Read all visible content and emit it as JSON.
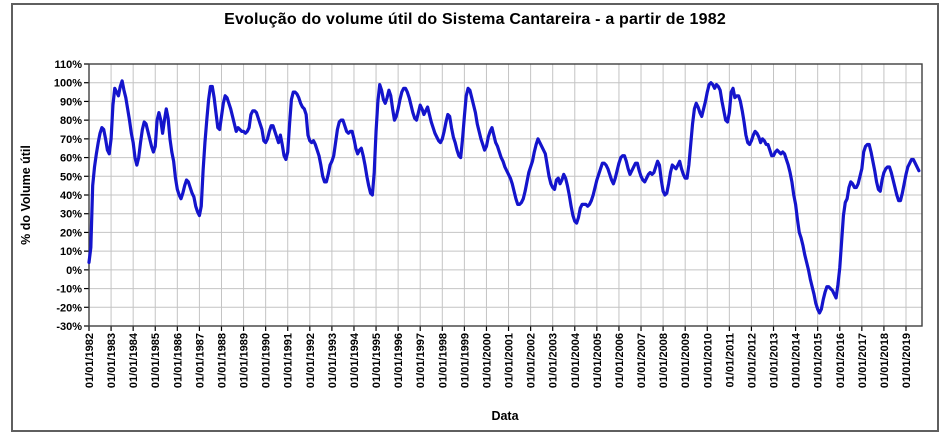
{
  "chart_data": {
    "type": "line",
    "title": "Evolução do volume útil do Sistema Cantareira - a partir de 1982",
    "xlabel": "Data",
    "ylabel": "% do Volume  útil",
    "grid": true,
    "legend_position": "none",
    "ylim": [
      -30,
      110
    ],
    "y_tick_labels": [
      "110%",
      "100%",
      "90%",
      "80%",
      "70%",
      "60%",
      "50%",
      "40%",
      "30%",
      "20%",
      "10%",
      "0%",
      "-10%",
      "-20%",
      "-30%"
    ],
    "x_tick_labels": [
      "01/01/1982",
      "01/01/1983",
      "01/01/1984",
      "01/01/1985",
      "01/01/1986",
      "01/01/1987",
      "01/01/1988",
      "01/01/1989",
      "01/01/1990",
      "01/01/1991",
      "01/01/1992",
      "01/01/1993",
      "01/01/1994",
      "01/01/1995",
      "01/01/1996",
      "01/01/1997",
      "01/01/1998",
      "01/01/1999",
      "01/01/2000",
      "01/01/2001",
      "01/01/2002",
      "01/01/2003",
      "01/01/2004",
      "01/01/2005",
      "01/01/2006",
      "01/01/2007",
      "01/01/2008",
      "01/01/2009",
      "01/01/2010",
      "01/01/2011",
      "01/01/2012",
      "01/01/2013",
      "01/01/2014",
      "01/01/2015",
      "01/01/2016",
      "01/01/2017",
      "01/01/2018",
      "01/01/2019"
    ],
    "line_color": "#1414cc",
    "grid_color": "#c4c4c4",
    "series": [
      {
        "name": "% do Volume útil",
        "start": "01/1982",
        "frequency": "monthly",
        "values_pct": [
          4,
          12,
          45,
          55,
          62,
          68,
          73,
          76,
          75,
          70,
          64,
          62,
          70,
          88,
          97,
          95,
          93,
          98,
          101,
          96,
          92,
          86,
          80,
          73,
          68,
          60,
          56,
          60,
          68,
          75,
          79,
          78,
          74,
          70,
          66,
          63,
          66,
          80,
          84,
          80,
          73,
          80,
          86,
          81,
          70,
          63,
          58,
          49,
          43,
          40,
          38,
          41,
          45,
          48,
          47,
          44,
          41,
          39,
          34,
          31,
          29,
          34,
          53,
          68,
          80,
          91,
          98,
          98,
          92,
          84,
          76,
          75,
          82,
          89,
          93,
          92,
          89,
          86,
          82,
          78,
          74,
          76,
          75,
          74,
          74,
          73,
          74,
          76,
          83,
          85,
          85,
          84,
          81,
          78,
          75,
          69,
          68,
          70,
          74,
          77,
          77,
          74,
          71,
          68,
          72,
          67,
          61,
          59,
          63,
          78,
          91,
          95,
          95,
          94,
          92,
          89,
          87,
          86,
          83,
          72,
          69,
          68,
          69,
          67,
          64,
          61,
          56,
          50,
          47,
          47,
          51,
          56,
          58,
          61,
          68,
          75,
          79,
          80,
          80,
          77,
          74,
          73,
          74,
          74,
          70,
          65,
          62,
          64,
          65,
          61,
          56,
          50,
          45,
          41,
          40,
          52,
          74,
          90,
          99,
          96,
          91,
          89,
          92,
          96,
          93,
          86,
          80,
          82,
          86,
          91,
          95,
          97,
          97,
          95,
          92,
          88,
          84,
          81,
          80,
          84,
          88,
          86,
          83,
          85,
          87,
          83,
          79,
          76,
          73,
          71,
          69,
          68,
          70,
          74,
          79,
          83,
          82,
          76,
          71,
          68,
          64,
          61,
          60,
          70,
          82,
          93,
          97,
          96,
          92,
          88,
          84,
          78,
          74,
          70,
          67,
          64,
          66,
          71,
          74,
          76,
          72,
          68,
          66,
          63,
          60,
          58,
          55,
          53,
          51,
          49,
          46,
          42,
          38,
          35,
          35,
          36,
          38,
          42,
          47,
          52,
          55,
          58,
          63,
          67,
          70,
          68,
          66,
          64,
          62,
          56,
          50,
          46,
          44,
          43,
          48,
          49,
          46,
          48,
          51,
          49,
          45,
          40,
          34,
          29,
          26,
          25,
          28,
          33,
          35,
          35,
          35,
          34,
          35,
          37,
          40,
          44,
          48,
          51,
          54,
          57,
          57,
          56,
          54,
          51,
          48,
          46,
          49,
          53,
          57,
          60,
          61,
          61,
          58,
          54,
          51,
          53,
          55,
          57,
          57,
          53,
          50,
          48,
          47,
          49,
          51,
          52,
          51,
          52,
          55,
          58,
          56,
          48,
          42,
          40,
          41,
          46,
          52,
          56,
          55,
          54,
          56,
          58,
          54,
          51,
          49,
          49,
          56,
          67,
          78,
          86,
          89,
          87,
          84,
          82,
          86,
          90,
          95,
          99,
          100,
          99,
          97,
          99,
          98,
          96,
          90,
          85,
          80,
          79,
          84,
          95,
          97,
          92,
          93,
          93,
          90,
          85,
          79,
          72,
          68,
          67,
          69,
          72,
          74,
          73,
          71,
          68,
          70,
          69,
          67,
          67,
          64,
          61,
          61,
          63,
          64,
          63,
          62,
          63,
          62,
          59,
          56,
          52,
          47,
          40,
          35,
          27,
          20,
          17,
          13,
          8,
          4,
          0,
          -5,
          -9,
          -13,
          -18,
          -21,
          -23,
          -21,
          -16,
          -12,
          -9,
          -9,
          -10,
          -11,
          -13,
          -15,
          -8,
          1,
          15,
          29,
          36,
          38,
          44,
          47,
          46,
          44,
          44,
          46,
          50,
          54,
          63,
          66,
          67,
          67,
          63,
          58,
          53,
          47,
          43,
          42,
          48,
          52,
          54,
          55,
          55,
          52,
          48,
          44,
          40,
          37,
          37,
          41,
          46,
          51,
          55,
          57,
          59,
          59,
          57,
          55,
          53
        ]
      }
    ]
  }
}
